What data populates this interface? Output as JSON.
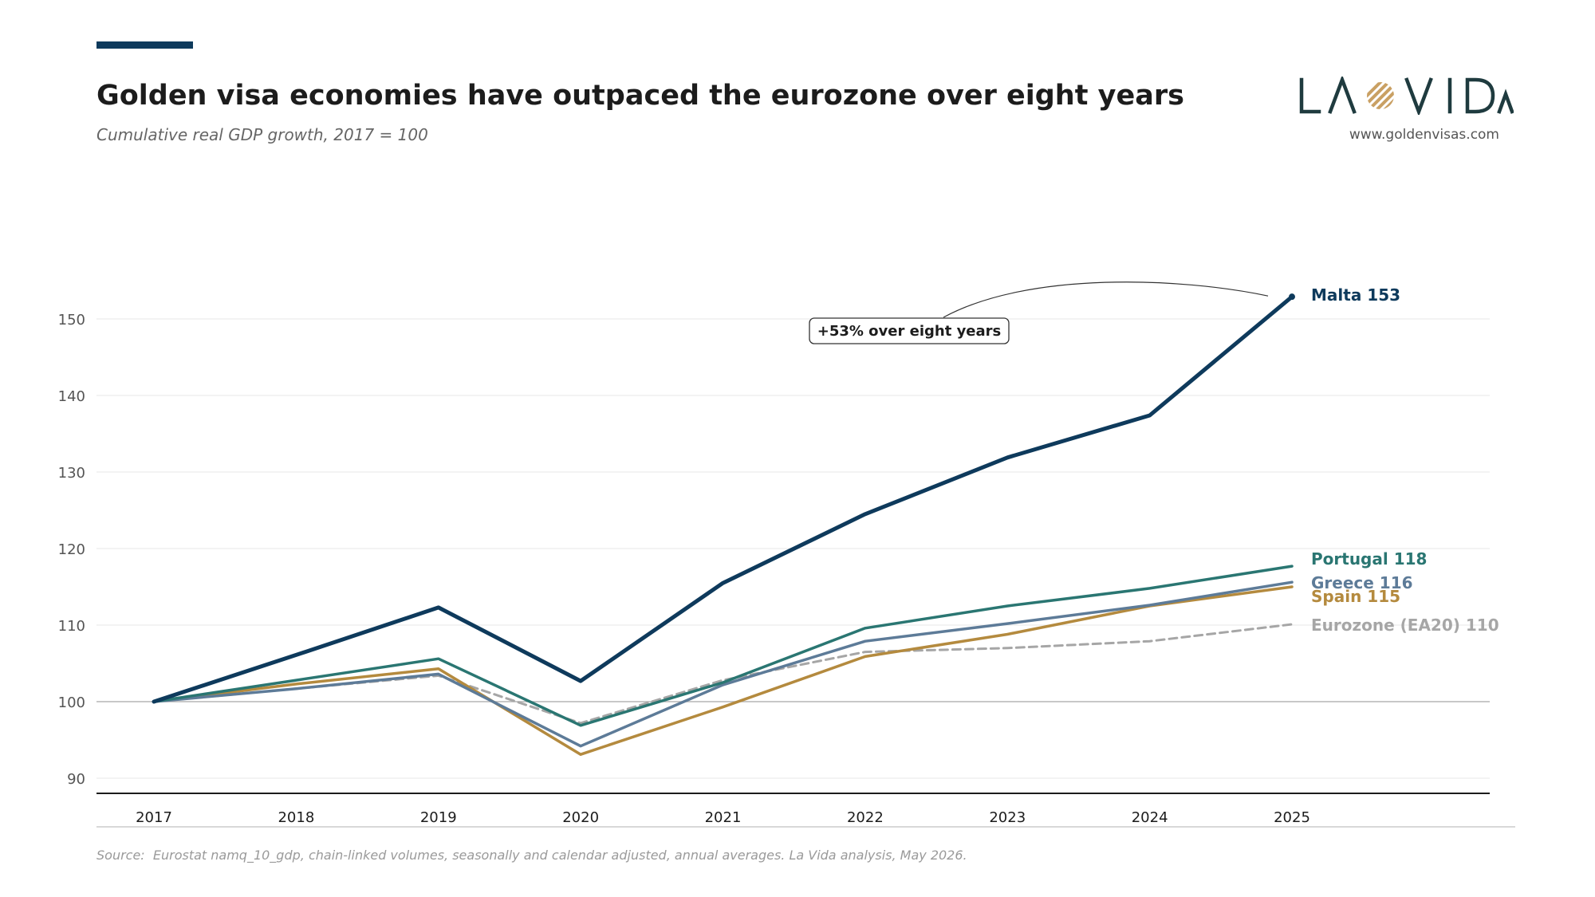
{
  "header": {
    "title": "Golden visa economies have outpaced the eurozone over eight years",
    "subtitle": "Cumulative real GDP growth, 2017 = 100",
    "logo_text": "LA VIDA",
    "website": "www.goldenvisas.com"
  },
  "footer": {
    "source": "Source:  Eurostat namq_10_gdp, chain-linked volumes, seasonally and calendar adjusted, annual averages. La Vida analysis, May 2026."
  },
  "colors": {
    "accent": "#0e3a5c",
    "logo_gold": "#c9a063",
    "logo_text": "#1f3b3f"
  },
  "chart_data": {
    "type": "line",
    "x": [
      2017,
      2018,
      2019,
      2020,
      2021,
      2022,
      2023,
      2024,
      2025
    ],
    "ylim": [
      88,
      158
    ],
    "yticks": [
      90,
      100,
      110,
      120,
      130,
      140,
      150
    ],
    "xticks": [
      "2017",
      "2018",
      "2019",
      "2020",
      "2021",
      "2022",
      "2023",
      "2024",
      "2025"
    ],
    "grid": true,
    "baseline": 100,
    "series": [
      {
        "name": "Eurozone (EA20)",
        "end_label": "110",
        "color": "#a6a6a6",
        "dashed": true,
        "width": 3,
        "values": [
          100,
          101.7,
          103.4,
          97.2,
          102.8,
          106.5,
          107.0,
          107.9,
          110.1
        ]
      },
      {
        "name": "Spain",
        "end_label": "115",
        "color": "#b48a3e",
        "dashed": false,
        "width": 3.5,
        "values": [
          100,
          102.3,
          104.3,
          93.1,
          99.3,
          105.9,
          108.8,
          112.5,
          115.0
        ]
      },
      {
        "name": "Greece",
        "end_label": "116",
        "color": "#5d7b98",
        "dashed": false,
        "width": 3.5,
        "values": [
          100,
          101.7,
          103.6,
          94.2,
          102.2,
          107.9,
          110.2,
          112.6,
          115.6
        ]
      },
      {
        "name": "Portugal",
        "end_label": "118",
        "color": "#2a7672",
        "dashed": false,
        "width": 3.5,
        "values": [
          100,
          102.8,
          105.6,
          96.9,
          102.5,
          109.6,
          112.5,
          114.8,
          117.7
        ]
      },
      {
        "name": "Malta",
        "end_label": "153",
        "color": "#0e3a5c",
        "dashed": false,
        "width": 5,
        "values": [
          100,
          106.1,
          112.3,
          102.7,
          115.5,
          124.5,
          131.9,
          137.4,
          152.9
        ]
      }
    ],
    "annotation": {
      "text": "+53% over eight years",
      "target_series": "Malta",
      "target_x": 2025
    }
  }
}
